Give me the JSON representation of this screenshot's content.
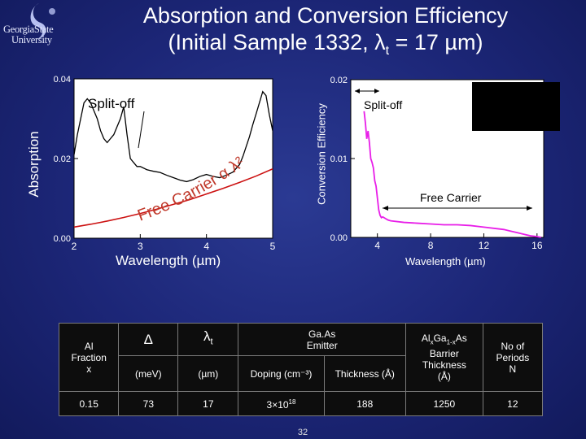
{
  "logo": {
    "line1": "GeorgiaState",
    "line2": "University"
  },
  "title": {
    "line1": "Absorption and Conversion Efficiency",
    "line2_pre": "(Initial Sample 1332, λ",
    "line2_sub": "t",
    "line2_post": " = 17 µm)"
  },
  "colors": {
    "background": "#1c2677",
    "plot_bg": "#ffffff",
    "absorption_curve": "#000000",
    "free_carrier_fit": "#cc1111",
    "efficiency_curve": "#e81ee8",
    "annotation": "#c0392b"
  },
  "chart_data": [
    {
      "type": "line",
      "xlabel": "Wavelength (µm)",
      "ylabel": "Absorption",
      "xlim": [
        2,
        5
      ],
      "ylim": [
        0,
        0.04
      ],
      "xticks": [
        "2",
        "3",
        "4",
        "5"
      ],
      "yticks": [
        "0.00",
        "0.02",
        "0.04"
      ],
      "annotations": {
        "split_off": "Split-off",
        "free_carrier": "Free Carrier  α  λ²"
      },
      "series": [
        {
          "x": [
            2.0,
            2.05,
            2.1,
            2.15,
            2.2,
            2.25,
            2.3,
            2.35,
            2.4,
            2.45,
            2.5,
            2.55,
            2.6,
            2.65,
            2.7,
            2.75,
            2.8,
            2.85,
            2.9,
            2.95,
            3.0,
            3.1,
            3.2,
            3.3,
            3.4,
            3.5,
            3.6,
            3.7,
            3.8,
            3.9,
            4.0,
            4.1,
            4.2,
            4.3,
            4.4,
            4.5,
            4.55,
            4.6,
            4.65,
            4.7,
            4.75,
            4.8,
            4.85,
            4.9,
            4.95,
            5.0
          ],
          "y": [
            0.021,
            0.026,
            0.03,
            0.034,
            0.035,
            0.034,
            0.032,
            0.03,
            0.027,
            0.025,
            0.024,
            0.025,
            0.026,
            0.028,
            0.03,
            0.033,
            0.026,
            0.02,
            0.019,
            0.018,
            0.018,
            0.0172,
            0.0168,
            0.0165,
            0.0158,
            0.0152,
            0.0146,
            0.0142,
            0.0147,
            0.0155,
            0.016,
            0.0155,
            0.0152,
            0.0158,
            0.0166,
            0.0185,
            0.0205,
            0.023,
            0.0255,
            0.0285,
            0.0312,
            0.034,
            0.0368,
            0.0358,
            0.031,
            0.027
          ]
        },
        {
          "x": [
            2.0,
            2.25,
            2.5,
            2.75,
            3.0,
            3.25,
            3.5,
            3.75,
            4.0,
            4.25,
            4.5,
            4.75,
            5.0
          ],
          "y": [
            0.0028,
            0.0035,
            0.0043,
            0.0052,
            0.0062,
            0.0073,
            0.0085,
            0.0097,
            0.0111,
            0.0125,
            0.014,
            0.0156,
            0.0174
          ]
        }
      ]
    },
    {
      "type": "line",
      "xlabel": "Wavelength (µm)",
      "ylabel": "Conversion Efficiency",
      "xlim": [
        2,
        16.5
      ],
      "ylim": [
        0,
        0.02
      ],
      "xticks": [
        "4",
        "8",
        "12",
        "16"
      ],
      "yticks": [
        "0.00",
        "0.01",
        "0.02"
      ],
      "annotations": {
        "split_off": "Split-off",
        "free_carrier": "Free Carrier"
      },
      "series": [
        {
          "x": [
            3.0,
            3.1,
            3.2,
            3.3,
            3.4,
            3.5,
            3.6,
            3.7,
            3.8,
            3.9,
            4.0,
            4.1,
            4.2,
            4.3,
            4.4,
            4.6,
            4.8,
            5.0,
            6.0,
            7.0,
            8.0,
            9.0,
            10.0,
            11.0,
            12.0,
            13.0,
            13.5,
            14.0,
            14.5,
            15.0,
            15.5,
            16.0,
            16.3
          ],
          "y": [
            0.016,
            0.0145,
            0.0125,
            0.0135,
            0.012,
            0.01,
            0.0095,
            0.0088,
            0.0072,
            0.0065,
            0.005,
            0.0035,
            0.0028,
            0.0025,
            0.0026,
            0.0024,
            0.0022,
            0.0021,
            0.0019,
            0.0018,
            0.0017,
            0.0016,
            0.0016,
            0.0015,
            0.0013,
            0.0011,
            0.001,
            0.0008,
            0.0006,
            0.0004,
            0.0002,
            0.0001,
            0.0
          ]
        }
      ]
    }
  ],
  "table": {
    "headers": {
      "al_fraction": [
        "Al",
        "Fraction",
        "x"
      ],
      "delta_symbol": "Δ",
      "delta_unit": "(meV)",
      "lambda_symbol": "λ",
      "lambda_sub": "t",
      "lambda_unit": "(µm)",
      "emitter": [
        "Ga.As",
        "Emitter"
      ],
      "doping": "Doping (cm⁻³)",
      "thickness": "Thickness (Å)",
      "barrier": {
        "l1a": "Al",
        "l1b": "x",
        "l1c": "Ga",
        "l1d": "1-x",
        "l1e": "As",
        "l2": "Barrier",
        "l3": "Thickness",
        "l4": "(Å)"
      },
      "periods": [
        "No of",
        "Periods",
        "N"
      ]
    },
    "row": {
      "x": "0.15",
      "delta": "73",
      "lambda": "17",
      "doping_base": "3×10",
      "doping_exp": "18",
      "thickness": "188",
      "barrier_thickness": "1250",
      "periods": "12"
    }
  },
  "page_number": "32"
}
